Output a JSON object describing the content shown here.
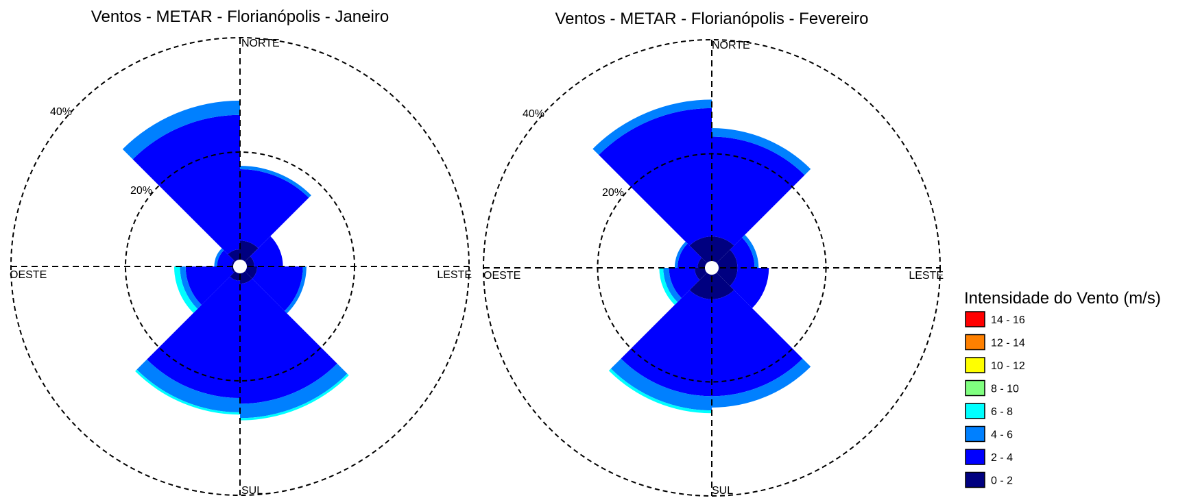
{
  "legend": {
    "title": "Intensidade do Vento (m/s)",
    "bins": [
      {
        "label": "14 - 16",
        "color": "#ff0000"
      },
      {
        "label": "12 - 14",
        "color": "#ff8000"
      },
      {
        "label": "10 - 12",
        "color": "#ffff00"
      },
      {
        "label": "8 - 10",
        "color": "#80ff80"
      },
      {
        "label": "6 - 8",
        "color": "#00ffff"
      },
      {
        "label": "4 - 6",
        "color": "#0080ff"
      },
      {
        "label": "2 - 4",
        "color": "#0000ff"
      },
      {
        "label": "0 - 2",
        "color": "#000080"
      }
    ]
  },
  "chart_data": [
    {
      "type": "windrose",
      "title": "Ventos - METAR - Florianópolis - Janeiro",
      "directions": {
        "north": "NORTE",
        "south": "SUL",
        "east": "LESTE",
        "west": "OESTE"
      },
      "radial_axis": {
        "max": 40,
        "unit": "%",
        "rings": [
          {
            "value": 20,
            "label": "20%"
          },
          {
            "value": 40,
            "label": "40%"
          }
        ]
      },
      "sector_width_deg": 45,
      "speed_bins": [
        "0 - 2",
        "2 - 4",
        "4 - 6",
        "6 - 8"
      ],
      "sectors": [
        {
          "direction_deg": 337.5,
          "values": [
            3.0,
            23.5,
            2.5,
            0
          ]
        },
        {
          "direction_deg": 22.5,
          "values": [
            4.5,
            12.5,
            0.6,
            0
          ]
        },
        {
          "direction_deg": 67.5,
          "values": [
            2.5,
            5.0,
            0,
            0
          ]
        },
        {
          "direction_deg": 112.5,
          "values": [
            3.0,
            8.0,
            0.6,
            0
          ]
        },
        {
          "direction_deg": 157.5,
          "values": [
            3.0,
            21.0,
            2.5,
            0.4
          ]
        },
        {
          "direction_deg": 202.5,
          "values": [
            2.5,
            20.5,
            2.5,
            0.4
          ]
        },
        {
          "direction_deg": 247.5,
          "values": [
            1.5,
            8.0,
            1.0,
            1.0
          ]
        },
        {
          "direction_deg": 292.5,
          "values": [
            1.5,
            2.5,
            0.5,
            0
          ]
        }
      ]
    },
    {
      "type": "windrose",
      "title": "Ventos - METAR - Florianópolis - Fevereiro",
      "directions": {
        "north": "NORTE",
        "south": "SUL",
        "east": "LESTE",
        "west": "OESTE"
      },
      "radial_axis": {
        "max": 40,
        "unit": "%",
        "rings": [
          {
            "value": 20,
            "label": "20%"
          },
          {
            "value": 40,
            "label": "40%"
          }
        ]
      },
      "sector_width_deg": 45,
      "speed_bins": [
        "0 - 2",
        "2 - 4",
        "4 - 6",
        "6 - 8"
      ],
      "sectors": [
        {
          "direction_deg": 337.5,
          "values": [
            5.5,
            22.5,
            1.5,
            0
          ]
        },
        {
          "direction_deg": 22.5,
          "values": [
            5.5,
            17.5,
            1.5,
            0
          ]
        },
        {
          "direction_deg": 67.5,
          "values": [
            4.5,
            3.0,
            0.7,
            0
          ]
        },
        {
          "direction_deg": 112.5,
          "values": [
            4.5,
            5.5,
            0,
            0
          ]
        },
        {
          "direction_deg": 157.5,
          "values": [
            5.5,
            17.0,
            2.0,
            0
          ]
        },
        {
          "direction_deg": 202.5,
          "values": [
            5.5,
            17.0,
            2.5,
            0.5
          ]
        },
        {
          "direction_deg": 247.5,
          "values": [
            3.0,
            4.5,
            1.0,
            0.7
          ]
        },
        {
          "direction_deg": 292.5,
          "values": [
            2.5,
            3.5,
            0.5,
            0
          ]
        }
      ]
    }
  ]
}
